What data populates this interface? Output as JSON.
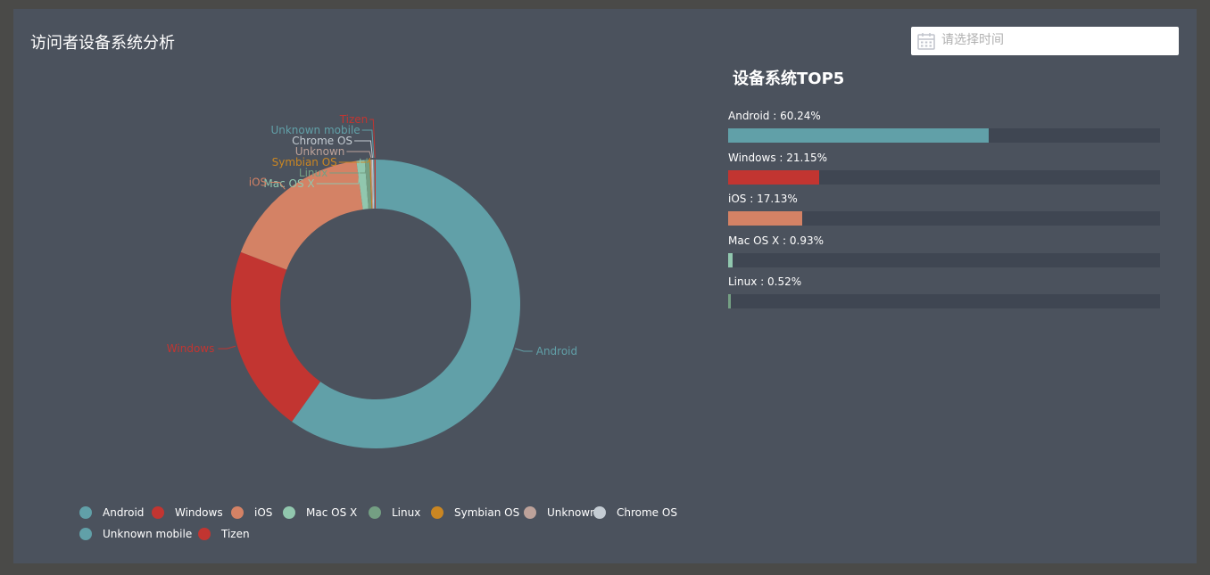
{
  "panel": {
    "title": "访问者设备系统分析"
  },
  "date_picker": {
    "placeholder": "请选择时间",
    "value": ""
  },
  "top5": {
    "title": "设备系统TOP5",
    "items": [
      {
        "name": "Android",
        "percent": 60.24,
        "label": "Android : 60.24%",
        "color": "#61a0a8"
      },
      {
        "name": "Windows",
        "percent": 21.15,
        "label": "Windows : 21.15%",
        "color": "#c23531"
      },
      {
        "name": "iOS",
        "percent": 17.13,
        "label": "iOS : 17.13%",
        "color": "#d48265"
      },
      {
        "name": "Mac OS X",
        "percent": 0.93,
        "label": "Mac OS X : 0.93%",
        "color": "#91c7ae"
      },
      {
        "name": "Linux",
        "percent": 0.52,
        "label": "Linux : 0.52%",
        "color": "#749f83"
      }
    ]
  },
  "chart_data": {
    "type": "pie",
    "variant": "donut",
    "title": "",
    "categories": [
      "Android",
      "Windows",
      "iOS",
      "Mac OS X",
      "Linux",
      "Symbian OS",
      "Unknown",
      "Chrome OS",
      "Unknown mobile",
      "Tizen"
    ],
    "values": [
      60.24,
      21.15,
      17.13,
      0.93,
      0.52,
      0.01,
      0.01,
      0.01,
      0.005,
      0.005
    ],
    "colors": [
      "#61a0a8",
      "#c23531",
      "#d48265",
      "#91c7ae",
      "#749f83",
      "#ca8622",
      "#bda29a",
      "#c4ccd3",
      "#61a0a8",
      "#c23531"
    ],
    "legend_position": "bottom-left"
  }
}
